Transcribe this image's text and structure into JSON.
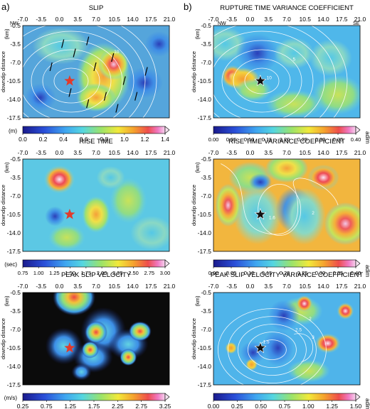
{
  "panel_letters": {
    "a": "a)",
    "b": "b)"
  },
  "directions": {
    "left": "NW",
    "right": "SE"
  },
  "xticks": [
    "-7.0",
    "-3.5",
    "0.0",
    "3.5",
    "7.0",
    "10.5",
    "14.0",
    "17.5",
    "21.0"
  ],
  "yticks": [
    "-0.5",
    "-3.5",
    "-7.0",
    "-10.5",
    "-14.0",
    "-17.5"
  ],
  "ylabel": "downdip distance",
  "yunit": "(km)",
  "panels": [
    {
      "title": "SLIP",
      "unit": "(m)",
      "cbar": [
        "0.0",
        "0.2",
        "0.4",
        "0.6",
        "0.8",
        "1.0",
        "1.2",
        "1.4"
      ]
    },
    {
      "title": "RISE TIME",
      "unit": "(sec)",
      "cbar": [
        "0.75",
        "1.00",
        "1.25",
        "1.50",
        "1.75",
        "2.00",
        "2.25",
        "2.50",
        "2.75",
        "3.00"
      ]
    },
    {
      "title": "PEAK SLIP VELOCITY",
      "unit": "(m/s)",
      "cbar": [
        "0.25",
        "0.75",
        "1.25",
        "1.75",
        "2.25",
        "2.75",
        "3.25"
      ]
    },
    {
      "title": "RUPTURE TIME VARIANCE COEFFICIENT",
      "unit": "adim",
      "cbar": [
        "0.00",
        "0.05",
        "0.10",
        "0.15",
        "0.20",
        "0.25",
        "0.30",
        "0.35",
        "0.40"
      ]
    },
    {
      "title": "RISE TIME VARIANCE COEFFICIENT",
      "unit": "adim",
      "cbar": [
        "0.00",
        "0.05",
        "0.10",
        "0.15",
        "0.20",
        "0.25",
        "0.30",
        "0.35",
        "0.40"
      ]
    },
    {
      "title": "PEAK SLIP VELOCITY VARIANCE COEFFICIENT",
      "unit": "adim",
      "cbar": [
        "0.00",
        "0.25",
        "0.50",
        "0.75",
        "1.00",
        "1.25",
        "1.50"
      ]
    }
  ],
  "contour_labels": {
    "slip": [
      "10"
    ],
    "rupture": [
      "5",
      "10"
    ],
    "risetime": [
      "2",
      "1.6"
    ],
    "psv": [
      "2.5",
      "3",
      "2",
      "1.5"
    ]
  },
  "colors": {
    "bg": "#0a0a0a",
    "star_red": "#e23a2a",
    "star_black": "#111111"
  }
}
